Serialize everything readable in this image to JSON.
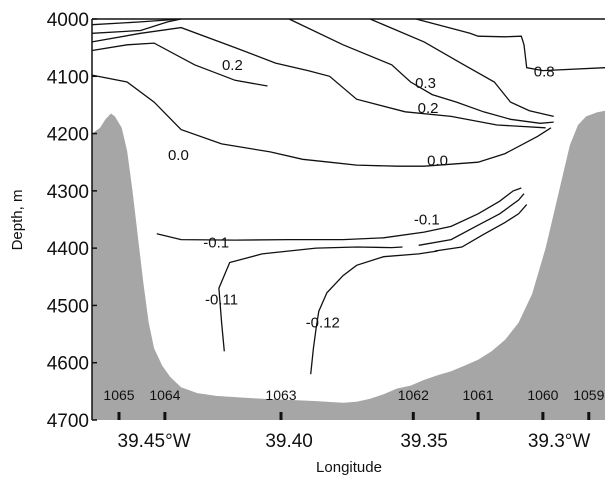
{
  "chart_data": {
    "type": "contour",
    "xlabel": "Longitude",
    "ylabel": "Depth, m",
    "xlim": [
      39.473,
      39.283
    ],
    "ylim": [
      4700,
      4000
    ],
    "x_ticks": [
      {
        "value": 39.45,
        "label": "39.45°W"
      },
      {
        "value": 39.4,
        "label": "39.40"
      },
      {
        "value": 39.35,
        "label": "39.35"
      },
      {
        "value": 39.3,
        "label": "39.3°W"
      }
    ],
    "y_ticks": [
      {
        "value": 4000,
        "label": "4000"
      },
      {
        "value": 4100,
        "label": "4100"
      },
      {
        "value": 4200,
        "label": "4200"
      },
      {
        "value": 4300,
        "label": "4300"
      },
      {
        "value": 4400,
        "label": "4400"
      },
      {
        "value": 4500,
        "label": "4500"
      },
      {
        "value": 4600,
        "label": "4600"
      },
      {
        "value": 4700,
        "label": "4700"
      }
    ],
    "stations": [
      {
        "label": "1065",
        "x": 39.463
      },
      {
        "label": "1064",
        "x": 39.446
      },
      {
        "label": "1063",
        "x": 39.403
      },
      {
        "label": "1062",
        "x": 39.354
      },
      {
        "label": "1061",
        "x": 39.33
      },
      {
        "label": "1060",
        "x": 39.306
      },
      {
        "label": "1059",
        "x": 39.289
      }
    ],
    "bottom_fill": "#a6a6a6",
    "bottom_profile": [
      [
        39.473,
        4200
      ],
      [
        39.47,
        4190
      ],
      [
        39.468,
        4175
      ],
      [
        39.466,
        4165
      ],
      [
        39.4645,
        4170
      ],
      [
        39.462,
        4190
      ],
      [
        39.46,
        4230
      ],
      [
        39.458,
        4300
      ],
      [
        39.456,
        4380
      ],
      [
        39.454,
        4460
      ],
      [
        39.452,
        4530
      ],
      [
        39.45,
        4575
      ],
      [
        39.447,
        4605
      ],
      [
        39.444,
        4625
      ],
      [
        39.44,
        4643
      ],
      [
        39.434,
        4653
      ],
      [
        39.427,
        4658
      ],
      [
        39.42,
        4660
      ],
      [
        39.41,
        4663
      ],
      [
        39.4,
        4665
      ],
      [
        39.39,
        4667
      ],
      [
        39.38,
        4670
      ],
      [
        39.375,
        4668
      ],
      [
        39.37,
        4663
      ],
      [
        39.365,
        4655
      ],
      [
        39.36,
        4645
      ],
      [
        39.355,
        4640
      ],
      [
        39.35,
        4630
      ],
      [
        39.345,
        4622
      ],
      [
        39.34,
        4615
      ],
      [
        39.335,
        4605
      ],
      [
        39.33,
        4595
      ],
      [
        39.325,
        4580
      ],
      [
        39.32,
        4560
      ],
      [
        39.315,
        4530
      ],
      [
        39.31,
        4480
      ],
      [
        39.305,
        4400
      ],
      [
        39.3,
        4300
      ],
      [
        39.296,
        4220
      ],
      [
        39.293,
        4185
      ],
      [
        39.29,
        4170
      ],
      [
        39.286,
        4163
      ],
      [
        39.283,
        4160
      ]
    ],
    "contours": [
      {
        "level": "0.8",
        "points": [
          [
            39.473,
            4010
          ],
          [
            39.455,
            4005
          ],
          [
            39.44,
            4000
          ]
        ]
      },
      {
        "level": "0.8",
        "points": [
          [
            39.353,
            4000
          ],
          [
            39.333,
            4025
          ],
          [
            39.33,
            4030
          ],
          [
            39.32,
            4031
          ],
          [
            39.314,
            4030
          ],
          [
            39.313,
            4045
          ],
          [
            39.312,
            4085
          ],
          [
            39.306,
            4090
          ],
          [
            39.283,
            4085
          ]
        ]
      },
      {
        "level": "",
        "points": [
          [
            39.473,
            4025
          ],
          [
            39.455,
            4020
          ],
          [
            39.445,
            4005
          ],
          [
            39.44,
            4000
          ]
        ]
      },
      {
        "level": "",
        "points": [
          [
            39.37,
            4000
          ],
          [
            39.35,
            4040
          ],
          [
            39.336,
            4078
          ],
          [
            39.324,
            4110
          ],
          [
            39.318,
            4145
          ],
          [
            39.311,
            4160
          ],
          [
            39.302,
            4170
          ]
        ]
      },
      {
        "level": "0.3",
        "points": [
          [
            39.4,
            4000
          ],
          [
            39.38,
            4045
          ],
          [
            39.362,
            4080
          ],
          [
            39.355,
            4110
          ],
          [
            39.347,
            4132
          ],
          [
            39.338,
            4145
          ],
          [
            39.328,
            4162
          ],
          [
            39.318,
            4175
          ],
          [
            39.307,
            4182
          ],
          [
            39.302,
            4180
          ]
        ]
      },
      {
        "level": "0.2",
        "points": [
          [
            39.473,
            4040
          ],
          [
            39.455,
            4025
          ],
          [
            39.44,
            4015
          ],
          [
            39.42,
            4050
          ],
          [
            39.405,
            4077
          ],
          [
            39.393,
            4090
          ],
          [
            39.385,
            4100
          ],
          [
            39.375,
            4140
          ],
          [
            39.357,
            4162
          ],
          [
            39.34,
            4170
          ],
          [
            39.323,
            4185
          ],
          [
            39.305,
            4190
          ]
        ]
      },
      {
        "level": "0.2",
        "points": [
          [
            39.473,
            4055
          ],
          [
            39.46,
            4045
          ],
          [
            39.45,
            4042
          ],
          [
            39.435,
            4080
          ],
          [
            39.42,
            4107
          ],
          [
            39.408,
            4117
          ]
        ]
      },
      {
        "level": "0.0",
        "points": [
          [
            39.473,
            4098
          ],
          [
            39.46,
            4110
          ],
          [
            39.45,
            4145
          ],
          [
            39.44,
            4193
          ],
          [
            39.425,
            4218
          ],
          [
            39.407,
            4232
          ],
          [
            39.395,
            4245
          ],
          [
            39.385,
            4250
          ],
          [
            39.375,
            4255
          ],
          [
            39.36,
            4257
          ],
          [
            39.35,
            4257
          ],
          [
            39.33,
            4250
          ],
          [
            39.32,
            4235
          ],
          [
            39.308,
            4205
          ],
          [
            39.303,
            4190
          ]
        ]
      },
      {
        "level": "-0.1",
        "points": [
          [
            39.449,
            4375
          ],
          [
            39.44,
            4385
          ],
          [
            39.42,
            4386
          ],
          [
            39.4,
            4385
          ],
          [
            39.38,
            4385
          ],
          [
            39.365,
            4382
          ],
          [
            39.35,
            4372
          ],
          [
            39.34,
            4362
          ],
          [
            39.33,
            4340
          ],
          [
            39.322,
            4318
          ],
          [
            39.317,
            4300
          ],
          [
            39.314,
            4295
          ]
        ]
      },
      {
        "level": "",
        "points": [
          [
            39.352,
            4395
          ],
          [
            39.34,
            4385
          ],
          [
            39.33,
            4360
          ],
          [
            39.322,
            4340
          ],
          [
            39.315,
            4316
          ],
          [
            39.313,
            4305
          ]
        ]
      },
      {
        "level": "",
        "points": [
          [
            39.346,
            4405
          ],
          [
            39.336,
            4398
          ],
          [
            39.328,
            4376
          ],
          [
            39.32,
            4355
          ],
          [
            39.315,
            4340
          ],
          [
            39.312,
            4324
          ]
        ]
      },
      {
        "level": "-0.11",
        "points": [
          [
            39.424,
            4580
          ],
          [
            39.425,
            4530
          ],
          [
            39.426,
            4470
          ],
          [
            39.422,
            4425
          ],
          [
            39.41,
            4410
          ],
          [
            39.4,
            4405
          ],
          [
            39.39,
            4400
          ],
          [
            39.375,
            4398
          ],
          [
            39.362,
            4399
          ],
          [
            39.358,
            4398
          ]
        ]
      },
      {
        "level": "-0.12",
        "points": [
          [
            39.392,
            4620
          ],
          [
            39.391,
            4575
          ],
          [
            39.39,
            4540
          ],
          [
            39.389,
            4510
          ],
          [
            39.386,
            4478
          ],
          [
            39.38,
            4448
          ],
          [
            39.375,
            4430
          ],
          [
            39.365,
            4415
          ],
          [
            39.352,
            4410
          ],
          [
            39.345,
            4405
          ]
        ]
      }
    ],
    "contour_labels": [
      {
        "text": "0.8",
        "x": 39.3055,
        "y": 4092
      },
      {
        "text": "0.3",
        "x": 39.3495,
        "y": 4112
      },
      {
        "text": "0.2",
        "x": 39.421,
        "y": 4080
      },
      {
        "text": "0.2",
        "x": 39.3485,
        "y": 4155
      },
      {
        "text": "0.0",
        "x": 39.441,
        "y": 4237
      },
      {
        "text": "0.0",
        "x": 39.345,
        "y": 4247
      },
      {
        "text": "-0.1",
        "x": 39.427,
        "y": 4390
      },
      {
        "text": "-0.1",
        "x": 39.349,
        "y": 4350
      },
      {
        "text": "-0.11",
        "x": 39.425,
        "y": 4490
      },
      {
        "text": "-0.12",
        "x": 39.3875,
        "y": 4530
      }
    ]
  }
}
